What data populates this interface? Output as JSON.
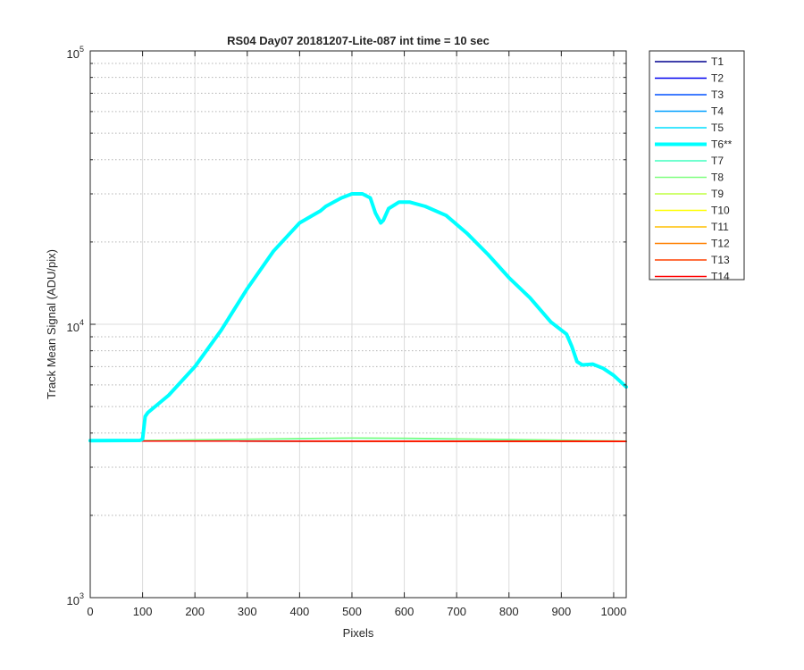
{
  "chart_data": {
    "type": "line",
    "title": "RS04 Day07 20181207-Lite-087 int time = 10 sec",
    "xlabel": "Pixels",
    "ylabel": "Track Mean Signal (ADU/pix)",
    "xlim": [
      0,
      1024
    ],
    "ylim": [
      1000,
      100000
    ],
    "yscale": "log",
    "grid": true,
    "legend_position": "outside-right",
    "x_ticks": [
      0,
      100,
      200,
      300,
      400,
      500,
      600,
      700,
      800,
      900,
      1000
    ],
    "x_tick_labels": [
      "0",
      "100",
      "200",
      "300",
      "400",
      "500",
      "600",
      "700",
      "800",
      "900",
      "1000"
    ],
    "y_major_ticks": [
      {
        "value": 1000,
        "base": "10",
        "exp": "3"
      },
      {
        "value": 10000,
        "base": "10",
        "exp": "4"
      },
      {
        "value": 100000,
        "base": "10",
        "exp": "5"
      }
    ],
    "series": [
      {
        "name": "T1",
        "color": "#00008f",
        "width": 1.5,
        "x": [
          0,
          1024
        ],
        "y": [
          3740,
          3730
        ]
      },
      {
        "name": "T2",
        "color": "#0000ef",
        "width": 1.5,
        "x": [
          0,
          1024
        ],
        "y": [
          3740,
          3730
        ]
      },
      {
        "name": "T3",
        "color": "#0050ff",
        "width": 1.5,
        "x": [
          0,
          1024
        ],
        "y": [
          3740,
          3730
        ]
      },
      {
        "name": "T4",
        "color": "#00a0ff",
        "width": 1.5,
        "x": [
          0,
          1024
        ],
        "y": [
          3740,
          3730
        ]
      },
      {
        "name": "T5",
        "color": "#00dfff",
        "width": 1.5,
        "x": [
          0,
          1024
        ],
        "y": [
          3740,
          3730
        ]
      },
      {
        "name": "T6**",
        "color": "#00ffff",
        "width": 4,
        "x": [
          0,
          95,
          100,
          105,
          110,
          150,
          200,
          250,
          300,
          350,
          400,
          440,
          450,
          480,
          500,
          520,
          535,
          545,
          555,
          560,
          570,
          590,
          610,
          640,
          680,
          720,
          760,
          800,
          840,
          880,
          910,
          920,
          930,
          940,
          960,
          980,
          1000,
          1024
        ],
        "y": [
          3750,
          3760,
          3800,
          4600,
          4750,
          5500,
          7000,
          9500,
          13500,
          18500,
          23500,
          26000,
          27000,
          29000,
          30000,
          30000,
          29000,
          25500,
          23500,
          24000,
          26500,
          28000,
          28000,
          27000,
          25000,
          21500,
          18000,
          14800,
          12500,
          10200,
          9200,
          8300,
          7300,
          7100,
          7150,
          6900,
          6500,
          5900
        ]
      },
      {
        "name": "T7",
        "color": "#40ffbf",
        "width": 1.5,
        "x": [
          0,
          200,
          400,
          500,
          600,
          800,
          1024
        ],
        "y": [
          3740,
          3770,
          3810,
          3830,
          3820,
          3780,
          3740
        ]
      },
      {
        "name": "T8",
        "color": "#80ff80",
        "width": 1.5,
        "x": [
          0,
          200,
          400,
          500,
          600,
          800,
          1024
        ],
        "y": [
          3740,
          3780,
          3820,
          3840,
          3830,
          3790,
          3740
        ]
      },
      {
        "name": "T9",
        "color": "#bfff40",
        "width": 1.5,
        "x": [
          0,
          1024
        ],
        "y": [
          3740,
          3730
        ]
      },
      {
        "name": "T10",
        "color": "#ffff00",
        "width": 1.5,
        "x": [
          0,
          1024
        ],
        "y": [
          3740,
          3730
        ]
      },
      {
        "name": "T11",
        "color": "#ffbf00",
        "width": 1.5,
        "x": [
          0,
          1024
        ],
        "y": [
          3740,
          3730
        ]
      },
      {
        "name": "T12",
        "color": "#ff8000",
        "width": 1.5,
        "x": [
          0,
          1024
        ],
        "y": [
          3740,
          3730
        ]
      },
      {
        "name": "T13",
        "color": "#ff4000",
        "width": 1.5,
        "x": [
          0,
          1024
        ],
        "y": [
          3740,
          3730
        ]
      },
      {
        "name": "T14",
        "color": "#ff0000",
        "width": 1.5,
        "x": [
          0,
          1024
        ],
        "y": [
          3740,
          3730
        ]
      }
    ]
  }
}
